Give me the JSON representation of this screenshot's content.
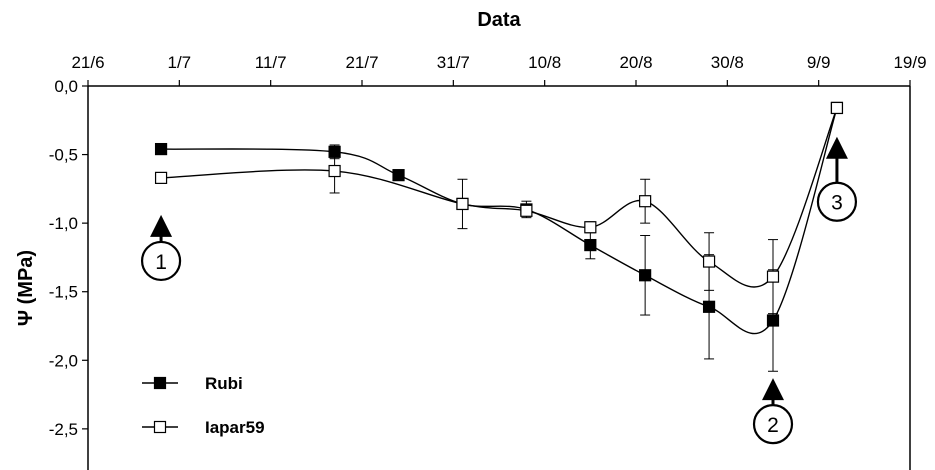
{
  "chart_data": {
    "type": "line",
    "xlabel": "Data",
    "ylabel": "Ψ (MPa)",
    "x_axis_position": "top",
    "x_ticks": [
      "2023-06-21",
      "2023-07-01",
      "2023-07-11",
      "2023-07-21",
      "2023-07-31",
      "2023-08-10",
      "2023-08-20",
      "2023-08-30",
      "2023-09-09",
      "2023-09-19"
    ],
    "x_tick_labels": [
      "21/6",
      "1/7",
      "11/7",
      "21/7",
      "31/7",
      "10/8",
      "20/8",
      "30/8",
      "9/9",
      "19/9"
    ],
    "xlim": [
      "2023-06-21",
      "2023-09-19"
    ],
    "ylim": [
      -2.8,
      0.0
    ],
    "y_ticks": [
      0.0,
      -0.5,
      -1.0,
      -1.5,
      -2.0,
      -2.5
    ],
    "y_tick_labels": [
      "0,0",
      "-0,5",
      "-1,0",
      "-1,5",
      "-2,0",
      "-2,5"
    ],
    "grid": false,
    "legend_position": "bottom-left",
    "series": [
      {
        "name": "Rubi",
        "marker": "filled-square",
        "color": "#000000",
        "x": [
          "2023-06-29",
          "2023-07-18",
          "2023-07-25",
          "2023-08-01",
          "2023-08-08",
          "2023-08-15",
          "2023-08-21",
          "2023-08-28",
          "2023-09-04",
          "2023-09-11"
        ],
        "y": [
          -0.46,
          -0.48,
          -0.65,
          -0.86,
          -0.9,
          -1.16,
          -1.38,
          -1.61,
          -1.71,
          -0.16
        ],
        "err": [
          0,
          0.05,
          0,
          0.18,
          0.06,
          0.1,
          0.29,
          0.38,
          0.37,
          0
        ]
      },
      {
        "name": "Iapar59",
        "marker": "open-square",
        "color": "#000000",
        "x": [
          "2023-06-29",
          "2023-07-18",
          "2023-08-01",
          "2023-08-08",
          "2023-08-15",
          "2023-08-21",
          "2023-08-28",
          "2023-09-04",
          "2023-09-11"
        ],
        "y": [
          -0.67,
          -0.62,
          -0.86,
          -0.91,
          -1.03,
          -0.84,
          -1.28,
          -1.39,
          -0.16
        ],
        "err": [
          0,
          0.16,
          0,
          0,
          0.04,
          0.16,
          0.21,
          0.27,
          0
        ]
      }
    ],
    "annotations": [
      {
        "label": "1",
        "x": "2023-06-29",
        "arrow_tip_y": -0.94
      },
      {
        "label": "2",
        "x": "2023-09-04",
        "arrow_tip_y": -2.13
      },
      {
        "label": "3",
        "x": "2023-09-11",
        "arrow_tip_y": -0.37
      }
    ]
  }
}
